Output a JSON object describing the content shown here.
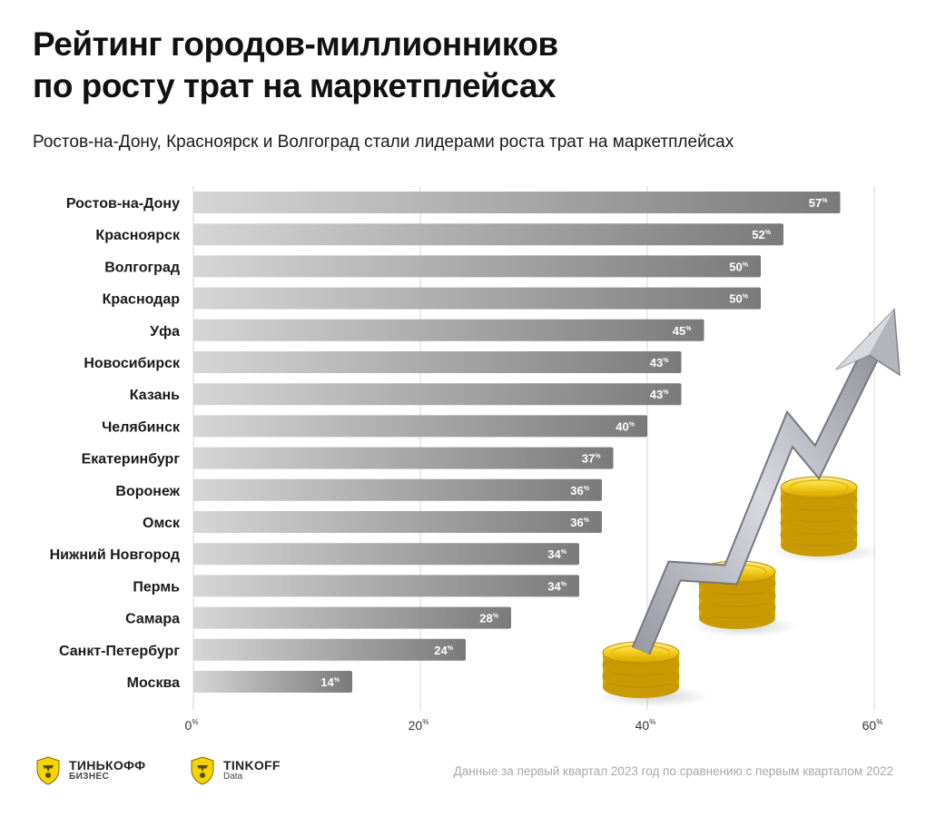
{
  "header": {
    "title_line1": "Рейтинг городов-миллионников",
    "title_line2": "по росту трат на маркетплейсах",
    "subtitle": "Ростов-на-Дону, Красноярск и Волгоград стали лидерами роста трат на маркетплейсах"
  },
  "chart_data": {
    "type": "bar",
    "orientation": "horizontal",
    "categories": [
      "Ростов-на-Дону",
      "Красноярск",
      "Волгоград",
      "Краснодар",
      "Уфа",
      "Новосибирск",
      "Казань",
      "Челябинск",
      "Екатеринбург",
      "Воронеж",
      "Омск",
      "Нижний Новгород",
      "Пермь",
      "Самара",
      "Санкт-Петербург",
      "Москва"
    ],
    "values": [
      57,
      52,
      50,
      50,
      45,
      43,
      43,
      40,
      37,
      36,
      36,
      34,
      34,
      28,
      24,
      14
    ],
    "value_suffix": "%",
    "xlim": [
      0,
      60
    ],
    "xticks": [
      0,
      20,
      40,
      60
    ],
    "tick_suffix": "%",
    "grid": "vertical",
    "bar_color_start": "#d6d6d6",
    "bar_color_end": "#7a7a7a"
  },
  "footer": {
    "note": "Данные за первый квартал 2023 год по сравнению с первым кварталом 2022",
    "logo1_main": "ТИНЬКОФФ",
    "logo1_sub": "БИЗНЕС",
    "logo2_main": "TINKOFF",
    "logo2_sub": "Data"
  },
  "colors": {
    "coin": "#f1c40f",
    "coin_dark": "#c9a100",
    "arrow": "#a9a9b2"
  }
}
